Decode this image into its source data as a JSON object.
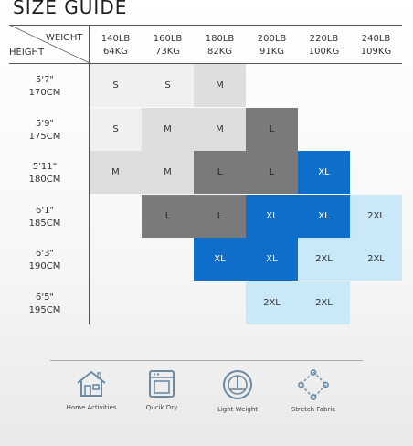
{
  "title": "SIZE GUIDE",
  "corner": {
    "weight_label": "WEIGHT",
    "height_label": "HEIGHT"
  },
  "columns": [
    {
      "lb": "140LB",
      "kg": "64KG"
    },
    {
      "lb": "160LB",
      "kg": "73KG"
    },
    {
      "lb": "180LB",
      "kg": "82KG"
    },
    {
      "lb": "200LB",
      "kg": "91KG"
    },
    {
      "lb": "220LB",
      "kg": "100KG"
    },
    {
      "lb": "240LB",
      "kg": "109KG"
    }
  ],
  "rows": [
    {
      "ft": "5'7\"",
      "cm": "170CM",
      "cells": [
        "S",
        "S",
        "M",
        "",
        "",
        ""
      ]
    },
    {
      "ft": "5'9\"",
      "cm": "175CM",
      "cells": [
        "S",
        "M",
        "M",
        "L",
        "",
        ""
      ]
    },
    {
      "ft": "5'11\"",
      "cm": "180CM",
      "cells": [
        "M",
        "M",
        "L",
        "L",
        "XL",
        ""
      ]
    },
    {
      "ft": "6'1\"",
      "cm": "185CM",
      "cells": [
        "",
        "L",
        "L",
        "XL",
        "XL",
        "2XL"
      ]
    },
    {
      "ft": "6'3\"",
      "cm": "190CM",
      "cells": [
        "",
        "",
        "XL",
        "XL",
        "2XL",
        "2XL"
      ]
    },
    {
      "ft": "6'5\"",
      "cm": "195CM",
      "cells": [
        "",
        "",
        "",
        "2XL",
        "2XL",
        ""
      ]
    }
  ],
  "size_colors": {
    "S": "#f0f0f0",
    "M": "#dedede",
    "L": "#7a7a7a",
    "XL": "#0f6ec9",
    "2XL": "#c9e8f8"
  },
  "features": [
    {
      "icon": "house-icon",
      "label": "Home Activities"
    },
    {
      "icon": "dryer-icon",
      "label": "Qucik Dry"
    },
    {
      "icon": "scale-icon",
      "label": "Light Weight"
    },
    {
      "icon": "stretch-icon",
      "label": "Stretch Fabric"
    }
  ]
}
